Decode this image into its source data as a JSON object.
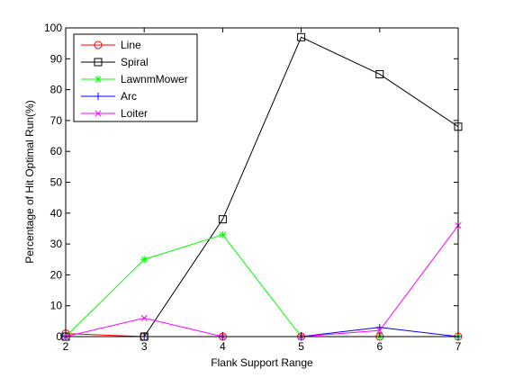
{
  "chart_data": {
    "type": "line",
    "xlabel": "Flank Support Range",
    "ylabel": "Percentage of Hit Optimal Run(%)",
    "x": [
      2,
      3,
      4,
      5,
      6,
      7
    ],
    "xlim": [
      2,
      7
    ],
    "ylim": [
      0,
      100
    ],
    "xticks": [
      2,
      3,
      4,
      5,
      6,
      7
    ],
    "yticks": [
      0,
      10,
      20,
      30,
      40,
      50,
      60,
      70,
      80,
      90,
      100
    ],
    "grid": false,
    "legend_position": "top-left",
    "series": [
      {
        "name": "Line",
        "color": "#ff0000",
        "marker": "circle",
        "values": [
          1,
          0,
          0,
          0,
          0,
          0
        ]
      },
      {
        "name": "Spiral",
        "color": "#000000",
        "marker": "square",
        "values": [
          0,
          0,
          38,
          97,
          85,
          68
        ]
      },
      {
        "name": "LawnmMower",
        "color": "#00ff00",
        "marker": "asterisk",
        "values": [
          0,
          25,
          33,
          0,
          0,
          0
        ]
      },
      {
        "name": "Arc",
        "color": "#0000ff",
        "marker": "plus",
        "values": [
          0,
          0,
          0,
          0,
          3,
          0
        ]
      },
      {
        "name": "Loiter",
        "color": "#ff00ff",
        "marker": "x",
        "values": [
          0,
          6,
          0,
          0,
          2,
          36
        ]
      }
    ]
  }
}
